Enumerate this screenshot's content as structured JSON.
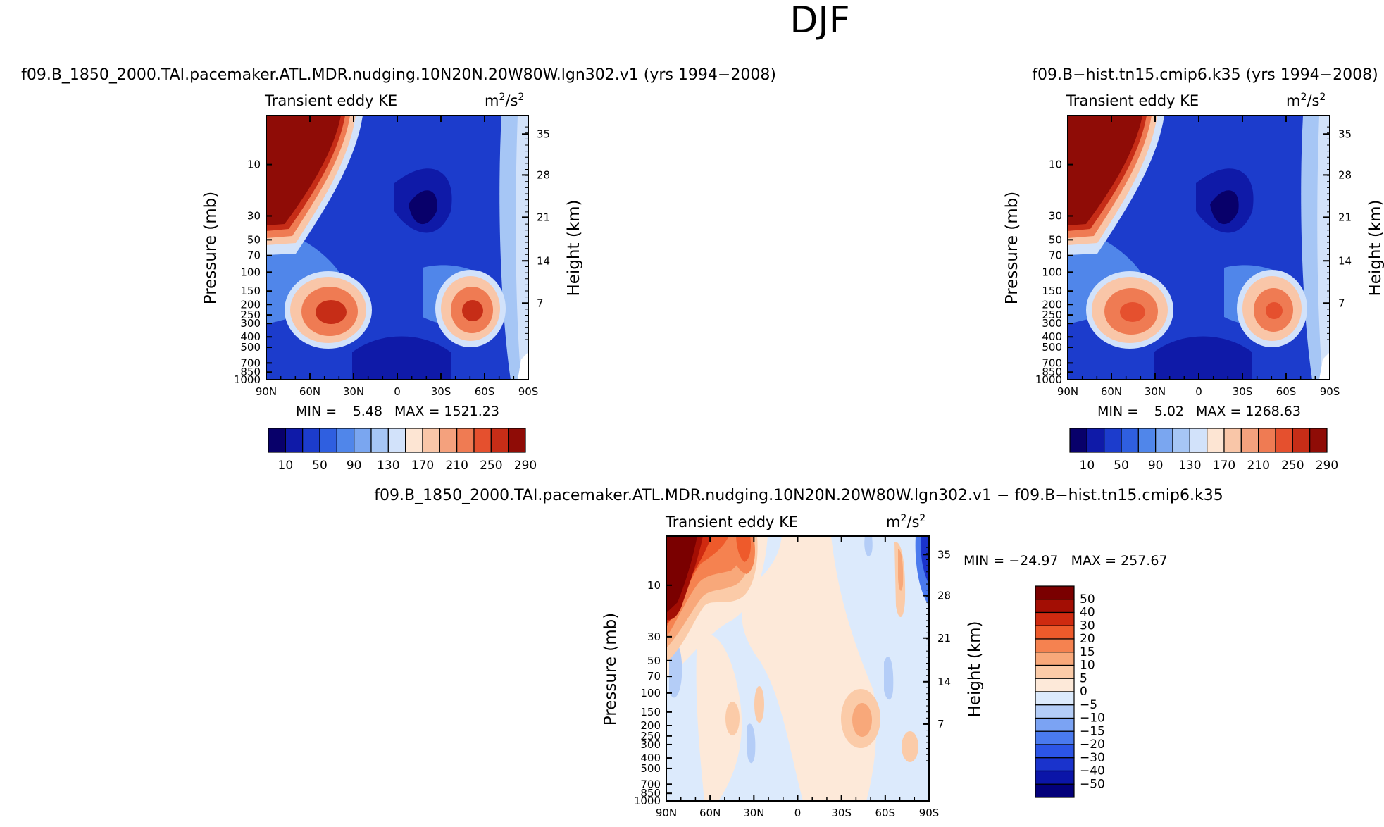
{
  "page_title": "DJF",
  "colors": {
    "abs_levels": [
      "#08006a",
      "#0f1aa8",
      "#1c3ccc",
      "#2f5fe0",
      "#5086ea",
      "#7aa6f0",
      "#a6c6f5",
      "#d2e2fa",
      "#fde5d3",
      "#f9c6a8",
      "#f4a17d",
      "#ef7b53",
      "#e5502e",
      "#c62d17",
      "#8f0c06"
    ],
    "diff_levels": [
      "#03007a",
      "#0b15a8",
      "#1a33cc",
      "#2c55e6",
      "#4a7aee",
      "#7ba3f3",
      "#b4cdf7",
      "#dceafc",
      "#fde9d9",
      "#fbcba8",
      "#f8a87a",
      "#f58250",
      "#ee5a2b",
      "#cf2a10",
      "#a30e04",
      "#7a0000"
    ]
  },
  "panels": [
    {
      "id": "panel-1",
      "title": "f09.B_1850_2000.TAI.pacemaker.ATL.MDR.nudging.10N20N.20W80W.lgn302.v1 (yrs 1994−2008)",
      "variable": "Transient eddy KE",
      "units_base": "m",
      "units_exp1": "2",
      "units_mid": "/s",
      "units_exp2": "2",
      "min_label": "MIN =",
      "min_value": "5.48",
      "max_label": "MAX = 1521.23"
    },
    {
      "id": "panel-2",
      "title": "f09.B−hist.tn15.cmip6.k35 (yrs 1994−2008)",
      "variable": "Transient eddy KE",
      "units_base": "m",
      "units_exp1": "2",
      "units_mid": "/s",
      "units_exp2": "2",
      "min_label": "MIN =",
      "min_value": "5.02",
      "max_label": "MAX = 1268.63"
    },
    {
      "id": "panel-3",
      "title": "f09.B_1850_2000.TAI.pacemaker.ATL.MDR.nudging.10N20N.20W80W.lgn302.v1 − f09.B−hist.tn15.cmip6.k35",
      "variable": "Transient eddy KE",
      "units_base": "m",
      "units_exp1": "2",
      "units_mid": "/s",
      "units_exp2": "2",
      "minmax": "MIN = −24.97   MAX = 257.67"
    }
  ],
  "chart_data": [
    {
      "type": "heatmap",
      "title": "f09.B_1850_2000.TAI.pacemaker.ATL.MDR.nudging.10N20N.20W80W.lgn302.v1 (yrs 1994−2008)",
      "subtitle": "Transient eddy KE (m²/s²)",
      "xlabel": "",
      "ylabel": "Pressure (mb)",
      "ylabel_right": "Height (km)",
      "x_ticks": [
        "90N",
        "60N",
        "30N",
        "0",
        "30S",
        "60S",
        "90S"
      ],
      "y_ticks": [
        "10",
        "30",
        "50",
        "70",
        "100",
        "150",
        "200",
        "250",
        "300",
        "400",
        "500",
        "700",
        "850",
        "1000"
      ],
      "y_right_ticks": [
        "35",
        "28",
        "21",
        "14",
        "7"
      ],
      "min": 5.48,
      "max": 1521.23,
      "colorbar_labels": [
        "10",
        "50",
        "90",
        "130",
        "170",
        "210",
        "250",
        "290"
      ],
      "features": [
        {
          "label": "stratospheric polar maximum",
          "lat": "90N",
          "value": ">290"
        },
        {
          "label": "NH jet maximum",
          "lat": "40N",
          "pressure_mb": 250,
          "value": 290
        },
        {
          "label": "SH jet maximum",
          "lat": "50S",
          "pressure_mb": 250,
          "value": 290
        }
      ]
    },
    {
      "type": "heatmap",
      "title": "f09.B−hist.tn15.cmip6.k35 (yrs 1994−2008)",
      "subtitle": "Transient eddy KE (m²/s²)",
      "xlabel": "",
      "ylabel": "Pressure (mb)",
      "ylabel_right": "Height (km)",
      "x_ticks": [
        "90N",
        "60N",
        "30N",
        "0",
        "30S",
        "60S",
        "90S"
      ],
      "y_ticks": [
        "10",
        "30",
        "50",
        "70",
        "100",
        "150",
        "200",
        "250",
        "300",
        "400",
        "500",
        "700",
        "850",
        "1000"
      ],
      "y_right_ticks": [
        "35",
        "28",
        "21",
        "14",
        "7"
      ],
      "min": 5.02,
      "max": 1268.63,
      "colorbar_labels": [
        "10",
        "50",
        "90",
        "130",
        "170",
        "210",
        "250",
        "290"
      ],
      "features": [
        {
          "label": "stratospheric polar maximum",
          "lat": "90N",
          "value": ">290"
        },
        {
          "label": "NH jet maximum",
          "lat": "40N",
          "pressure_mb": 250,
          "value": 270
        },
        {
          "label": "SH jet maximum",
          "lat": "50S",
          "pressure_mb": 250,
          "value": 270
        }
      ]
    },
    {
      "type": "heatmap",
      "title": "f09.B_1850_2000.TAI.pacemaker.ATL.MDR.nudging.10N20N.20W80W.lgn302.v1 − f09.B−hist.tn15.cmip6.k35",
      "subtitle": "Transient eddy KE (m²/s²)",
      "xlabel": "",
      "ylabel": "Pressure (mb)",
      "ylabel_right": "Height (km)",
      "x_ticks": [
        "90N",
        "60N",
        "30N",
        "0",
        "30S",
        "60S",
        "90S"
      ],
      "y_ticks": [
        "10",
        "30",
        "50",
        "70",
        "100",
        "150",
        "200",
        "250",
        "300",
        "400",
        "500",
        "700",
        "850",
        "1000"
      ],
      "y_right_ticks": [
        "35",
        "28",
        "21",
        "14",
        "7"
      ],
      "min": -24.97,
      "max": 257.67,
      "colorbar_labels": [
        "−50",
        "−40",
        "−30",
        "−20",
        "−15",
        "−10",
        "−5",
        "0",
        "5",
        "10",
        "15",
        "20",
        "30",
        "40",
        "50"
      ]
    }
  ]
}
